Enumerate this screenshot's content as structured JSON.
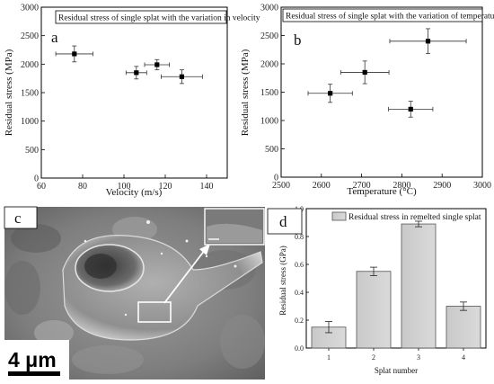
{
  "panels": {
    "a": "a",
    "b": "b",
    "c": "c",
    "d": "d"
  },
  "scale_bar": "4 μm",
  "chart_data": [
    {
      "id": "a",
      "type": "scatter",
      "title": "Residual stress of single splat with the variation in velocity",
      "xlabel": "Velocity (m/s)",
      "ylabel": "Residual stress (MPa)",
      "xlim": [
        60,
        150
      ],
      "ylim": [
        0,
        3000
      ],
      "xticks": [
        60,
        80,
        100,
        120,
        140
      ],
      "yticks": [
        0,
        500,
        1000,
        1500,
        2000,
        2500,
        3000
      ],
      "series": [
        {
          "x": [
            76,
            106,
            116,
            128
          ],
          "y": [
            2180,
            1850,
            1990,
            1780
          ],
          "xerr": [
            9,
            5,
            6,
            10
          ],
          "yerr": [
            140,
            110,
            90,
            120
          ]
        }
      ]
    },
    {
      "id": "b",
      "type": "scatter",
      "title": "Residual stress of single splat with the variation of temperature",
      "xlabel": "Temperature (°C)",
      "ylabel": "Residual stress (MPa)",
      "xlim": [
        2500,
        3000
      ],
      "ylim": [
        0,
        3000
      ],
      "xticks": [
        2500,
        2600,
        2700,
        2800,
        2900,
        3000
      ],
      "yticks": [
        0,
        500,
        1000,
        1500,
        2000,
        2500,
        3000
      ],
      "series": [
        {
          "x": [
            2622,
            2708,
            2822,
            2865
          ],
          "y": [
            1480,
            1850,
            1200,
            2400
          ],
          "xerr": [
            55,
            60,
            55,
            95
          ],
          "yerr": [
            160,
            200,
            140,
            220
          ]
        }
      ]
    },
    {
      "id": "d",
      "type": "bar",
      "legend": "Residual stress in remelted single splat",
      "xlabel": "Splat number",
      "ylabel": "Residual stress (GPa)",
      "categories": [
        "1",
        "2",
        "3",
        "4"
      ],
      "values": [
        0.15,
        0.55,
        0.89,
        0.3
      ],
      "yerr": [
        0.04,
        0.03,
        0.02,
        0.03
      ],
      "ylim": [
        0,
        1.0
      ],
      "yticks": [
        "0.0",
        "0.2",
        "0.4",
        "0.6",
        "0.8",
        "1.0"
      ]
    }
  ]
}
